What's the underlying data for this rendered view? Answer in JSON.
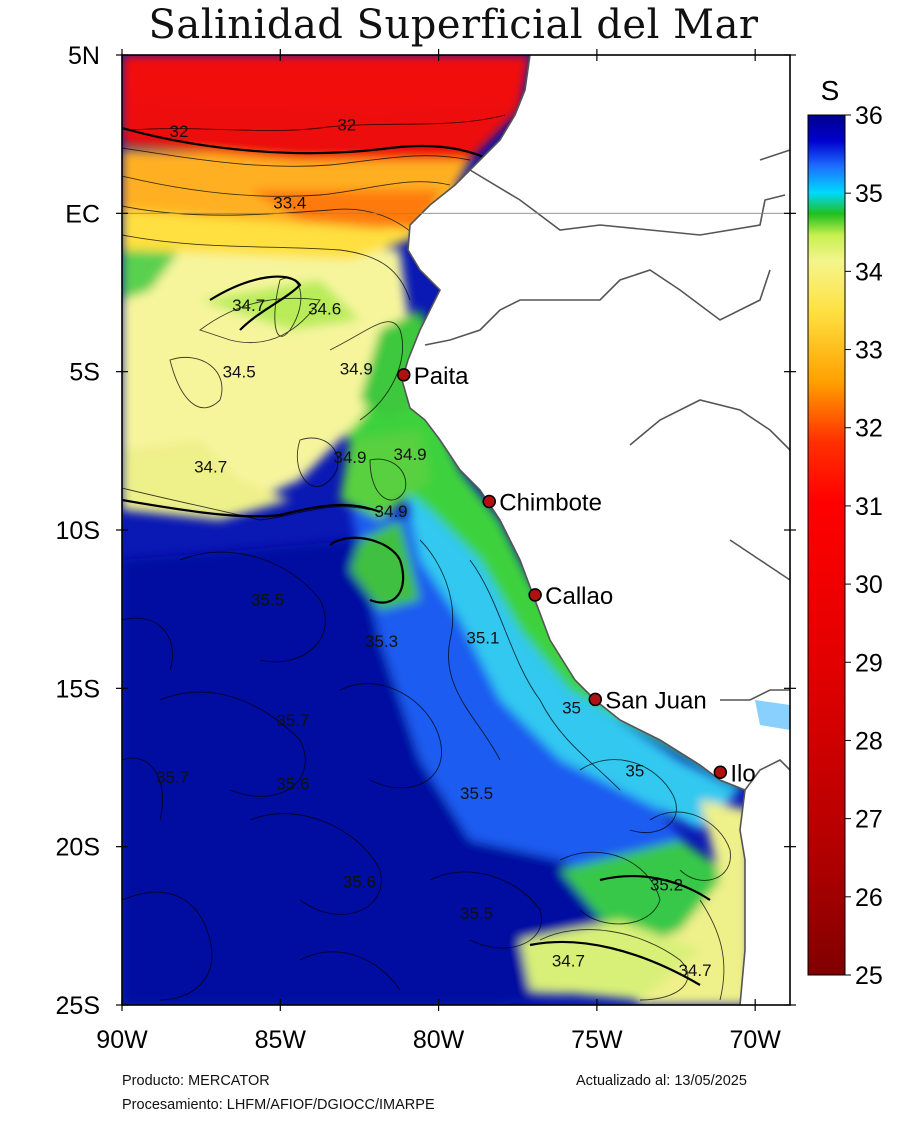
{
  "title": "Salinidad Superficial del Mar",
  "axes": {
    "y_ticks": [
      {
        "value": 5,
        "label": "5N"
      },
      {
        "value": 0,
        "label": "EC"
      },
      {
        "value": -5,
        "label": "5S"
      },
      {
        "value": -10,
        "label": "10S"
      },
      {
        "value": -15,
        "label": "15S"
      },
      {
        "value": -20,
        "label": "20S"
      },
      {
        "value": -25,
        "label": "25S"
      }
    ],
    "x_ticks": [
      {
        "value": -90,
        "label": "90W"
      },
      {
        "value": -85,
        "label": "85W"
      },
      {
        "value": -80,
        "label": "80W"
      },
      {
        "value": -75,
        "label": "75W"
      },
      {
        "value": -70,
        "label": "70W"
      }
    ],
    "lon_range": [
      -90,
      -68.9
    ],
    "lat_range": [
      -25,
      5
    ]
  },
  "colorbar": {
    "label": "S",
    "min": 25,
    "max": 36,
    "ticks": [
      "36",
      "35",
      "34",
      "33",
      "32",
      "31",
      "30",
      "29",
      "28",
      "27",
      "26",
      "25"
    ],
    "colors": [
      "#00008b",
      "#0000cd",
      "#1e6fff",
      "#00d8ff",
      "#1fc01f",
      "#c8f050",
      "#f5f58c",
      "#ffe040",
      "#ffa000",
      "#ff3000",
      "#e60000",
      "#b40000",
      "#800000"
    ]
  },
  "cities": [
    {
      "name": "Paita",
      "lat": -5.1,
      "lon": -81.1
    },
    {
      "name": "Chimbote",
      "lat": -9.1,
      "lon": -78.4
    },
    {
      "name": "Callao",
      "lat": -12.05,
      "lon": -76.95
    },
    {
      "name": "San Juan",
      "lat": -15.35,
      "lon": -75.05
    },
    {
      "name": "Ilo",
      "lat": -17.65,
      "lon": -71.1
    }
  ],
  "contour_labels": [
    {
      "text": "32",
      "lat": 2.6,
      "lon": -88.2
    },
    {
      "text": "32",
      "lat": 2.8,
      "lon": -82.9
    },
    {
      "text": "33.4",
      "lat": 0.35,
      "lon": -84.7
    },
    {
      "text": "34.7",
      "lat": -2.9,
      "lon": -86.0
    },
    {
      "text": "34.6",
      "lat": -3.0,
      "lon": -83.6
    },
    {
      "text": "34.5",
      "lat": -5.0,
      "lon": -86.3
    },
    {
      "text": "34.9",
      "lat": -4.9,
      "lon": -82.6
    },
    {
      "text": "34.7",
      "lat": -8.0,
      "lon": -87.2
    },
    {
      "text": "34.9",
      "lat": -7.7,
      "lon": -82.8
    },
    {
      "text": "34.9",
      "lat": -7.6,
      "lon": -80.9
    },
    {
      "text": "34.9",
      "lat": -9.4,
      "lon": -81.5
    },
    {
      "text": "35.5",
      "lat": -12.2,
      "lon": -85.4
    },
    {
      "text": "35.3",
      "lat": -13.5,
      "lon": -81.8
    },
    {
      "text": "35.1",
      "lat": -13.4,
      "lon": -78.6
    },
    {
      "text": "35.7",
      "lat": -16.0,
      "lon": -84.6
    },
    {
      "text": "35",
      "lat": -15.6,
      "lon": -75.8
    },
    {
      "text": "35",
      "lat": -17.6,
      "lon": -73.8
    },
    {
      "text": "35.7",
      "lat": -17.8,
      "lon": -88.4
    },
    {
      "text": "35.6",
      "lat": -18.0,
      "lon": -84.6
    },
    {
      "text": "35.5",
      "lat": -18.3,
      "lon": -78.8
    },
    {
      "text": "35.6",
      "lat": -21.1,
      "lon": -82.5
    },
    {
      "text": "35.2",
      "lat": -21.2,
      "lon": -72.8
    },
    {
      "text": "35.5",
      "lat": -22.1,
      "lon": -78.8
    },
    {
      "text": "34.7",
      "lat": -23.6,
      "lon": -75.9
    },
    {
      "text": "34.7",
      "lat": -23.9,
      "lon": -71.9
    }
  ],
  "footer": {
    "product": "Producto: MERCATOR",
    "processing": "Procesamiento: LHFM/AFIOF/DGIOCC/IMARPE",
    "updated": "Actualizado al: 13/05/2025"
  }
}
